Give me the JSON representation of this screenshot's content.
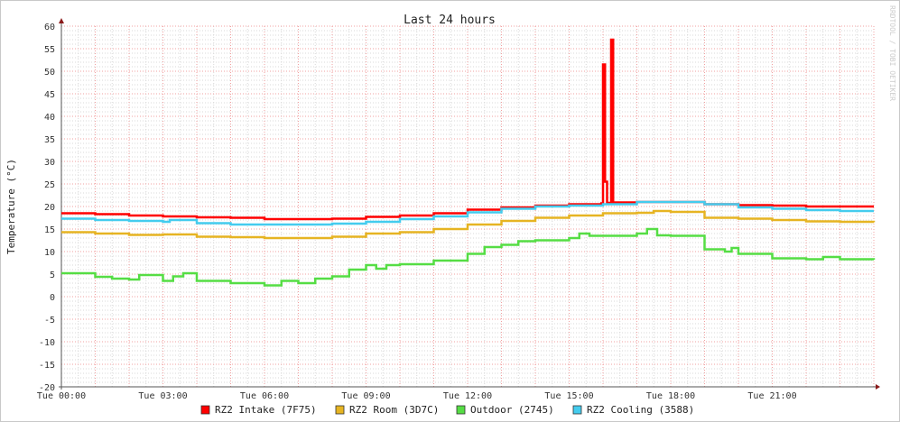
{
  "chart_data": {
    "type": "line",
    "title": "Last 24 hours",
    "ylabel": "Temperature (°C)",
    "xlabel": "",
    "watermark": "RRDTOOL / TOBI OETIKER",
    "ylim": [
      -20,
      60
    ],
    "yticks": [
      60,
      55,
      50,
      45,
      40,
      35,
      30,
      25,
      20,
      15,
      10,
      5,
      0,
      -5,
      -10,
      -15,
      -20
    ],
    "xlim_hours": [
      0,
      24
    ],
    "xticks": [
      {
        "hour": 0,
        "label": "Tue 00:00"
      },
      {
        "hour": 3,
        "label": "Tue 03:00"
      },
      {
        "hour": 6,
        "label": "Tue 06:00"
      },
      {
        "hour": 9,
        "label": "Tue 09:00"
      },
      {
        "hour": 12,
        "label": "Tue 12:00"
      },
      {
        "hour": 15,
        "label": "Tue 15:00"
      },
      {
        "hour": 18,
        "label": "Tue 18:00"
      },
      {
        "hour": 21,
        "label": "Tue 21:00"
      }
    ],
    "grid": true,
    "legend_position": "bottom",
    "series": [
      {
        "name": "RZ2 Intake (7F75)",
        "color": "#ff0000",
        "points": [
          [
            0,
            18.5
          ],
          [
            1,
            18.3
          ],
          [
            2,
            18
          ],
          [
            3,
            17.8
          ],
          [
            4,
            17.6
          ],
          [
            5,
            17.5
          ],
          [
            6,
            17.2
          ],
          [
            7,
            17.2
          ],
          [
            8,
            17.3
          ],
          [
            9,
            17.7
          ],
          [
            10,
            18
          ],
          [
            11,
            18.5
          ],
          [
            12,
            19.3
          ],
          [
            13,
            19.8
          ],
          [
            14,
            20.2
          ],
          [
            15,
            20.5
          ],
          [
            15.95,
            20.7
          ],
          [
            16.0,
            51.5
          ],
          [
            16.06,
            25.5
          ],
          [
            16.12,
            20.8
          ],
          [
            16.2,
            20.8
          ],
          [
            16.24,
            57
          ],
          [
            16.3,
            20.9
          ],
          [
            17,
            21
          ],
          [
            18,
            21
          ],
          [
            19,
            20.5
          ],
          [
            20,
            20.3
          ],
          [
            21,
            20.2
          ],
          [
            22,
            20
          ],
          [
            23,
            20
          ],
          [
            24,
            20
          ]
        ]
      },
      {
        "name": "RZ2 Room (3D7C)",
        "color": "#e6b422",
        "points": [
          [
            0,
            14.3
          ],
          [
            1,
            14
          ],
          [
            2,
            13.7
          ],
          [
            3,
            13.8
          ],
          [
            4,
            13.3
          ],
          [
            5,
            13.2
          ],
          [
            6,
            13
          ],
          [
            7,
            13
          ],
          [
            8,
            13.3
          ],
          [
            9,
            14
          ],
          [
            10,
            14.3
          ],
          [
            11,
            15
          ],
          [
            12,
            16
          ],
          [
            13,
            16.8
          ],
          [
            14,
            17.5
          ],
          [
            15,
            18
          ],
          [
            16,
            18.5
          ],
          [
            17,
            18.6
          ],
          [
            17.5,
            19
          ],
          [
            18,
            18.8
          ],
          [
            19,
            17.5
          ],
          [
            20,
            17.3
          ],
          [
            21,
            17
          ],
          [
            22,
            16.7
          ],
          [
            23,
            16.6
          ],
          [
            24,
            16.5
          ]
        ]
      },
      {
        "name": "Outdoor (2745)",
        "color": "#55dd44",
        "points": [
          [
            0,
            5.2
          ],
          [
            1,
            4.4
          ],
          [
            1.5,
            4
          ],
          [
            2,
            3.8
          ],
          [
            2.3,
            4.8
          ],
          [
            3,
            3.5
          ],
          [
            3.3,
            4.5
          ],
          [
            3.6,
            5.2
          ],
          [
            4,
            3.5
          ],
          [
            5,
            3
          ],
          [
            6,
            2.5
          ],
          [
            6.5,
            3.5
          ],
          [
            7,
            3
          ],
          [
            7.5,
            4
          ],
          [
            8,
            4.5
          ],
          [
            8.5,
            6
          ],
          [
            9,
            7
          ],
          [
            9.3,
            6.2
          ],
          [
            9.6,
            7
          ],
          [
            10,
            7.2
          ],
          [
            11,
            8
          ],
          [
            12,
            9.5
          ],
          [
            12.5,
            11
          ],
          [
            13,
            11.5
          ],
          [
            13.5,
            12.3
          ],
          [
            14,
            12.5
          ],
          [
            15,
            13
          ],
          [
            15.3,
            14
          ],
          [
            15.6,
            13.5
          ],
          [
            16,
            13.5
          ],
          [
            17,
            14
          ],
          [
            17.3,
            15
          ],
          [
            17.6,
            13.6
          ],
          [
            18,
            13.5
          ],
          [
            18.4,
            13.5
          ],
          [
            19,
            10.5
          ],
          [
            19.6,
            10
          ],
          [
            19.8,
            10.8
          ],
          [
            20,
            9.5
          ],
          [
            21,
            8.5
          ],
          [
            22,
            8.3
          ],
          [
            22.5,
            8.8
          ],
          [
            23,
            8.3
          ],
          [
            24,
            8.2
          ]
        ]
      },
      {
        "name": "RZ2 Cooling (3588)",
        "color": "#44ccee",
        "points": [
          [
            0,
            17.3
          ],
          [
            1,
            17
          ],
          [
            2,
            16.8
          ],
          [
            3,
            16.6
          ],
          [
            3.2,
            17
          ],
          [
            4,
            16.3
          ],
          [
            5,
            16
          ],
          [
            6,
            16
          ],
          [
            7,
            16
          ],
          [
            8,
            16.2
          ],
          [
            9,
            16.6
          ],
          [
            10,
            17.2
          ],
          [
            11,
            17.8
          ],
          [
            12,
            18.7
          ],
          [
            13,
            19.5
          ],
          [
            14,
            20
          ],
          [
            15,
            20.2
          ],
          [
            16,
            20.5
          ],
          [
            17,
            21
          ],
          [
            18,
            21
          ],
          [
            19,
            20.5
          ],
          [
            20,
            19.8
          ],
          [
            21,
            19.5
          ],
          [
            22,
            19.2
          ],
          [
            23,
            19
          ],
          [
            24,
            19
          ]
        ]
      }
    ]
  }
}
